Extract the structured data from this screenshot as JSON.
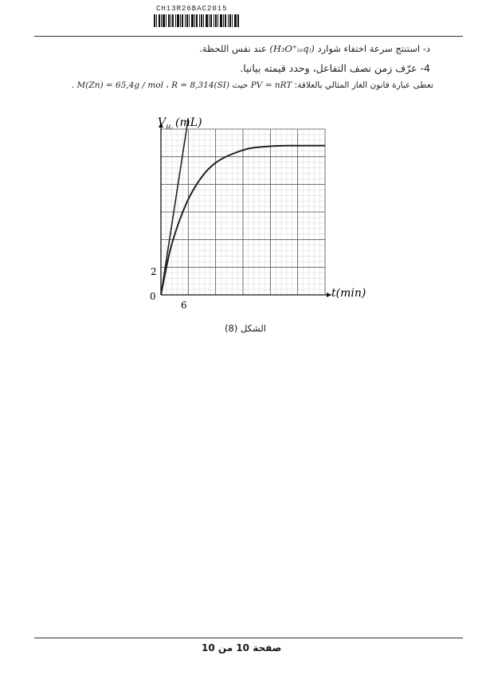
{
  "header": {
    "code": "CH13R26BAC2015"
  },
  "questions": {
    "q_d": {
      "prefix": "د-",
      "text_1": "استنتج سرعة اختفاء شوارد",
      "formula": "(H₃O⁺₍ₐq₎)",
      "text_2": "عند نفس اللحظة."
    },
    "q_4": {
      "prefix": "4-",
      "text": "عرّف زمن نصف التفاعل، وحدد قيمته بيانيا."
    },
    "gas_law": {
      "text": "تعطى عبارة قانون الغاز المثالي بالعلاقة:",
      "formula": "PV = nRT",
      "where": "حيث",
      "R": "R = 8,314(SI)",
      "sep": "،",
      "M": "M(Zn) = 65,4g / mol",
      "end": "."
    }
  },
  "figure": {
    "caption": "الشكل (8)",
    "y_label": "V",
    "y_subscript": "H₂",
    "y_unit": "(mL)",
    "x_label": "t(min)",
    "origin_label": "0",
    "y_tick_label": "2",
    "x_tick_label": "6"
  },
  "chart_data": {
    "type": "line",
    "xlabel": "t(min)",
    "ylabel": "V_H2 (mL)",
    "xlim": [
      0,
      36
    ],
    "ylim": [
      0,
      30
    ],
    "grid": true,
    "x_tick_labels": [
      "6"
    ],
    "y_tick_labels": [
      "2"
    ],
    "series": [
      {
        "type": "curve",
        "x": [
          0,
          2,
          4,
          6,
          8,
          10,
          12,
          14,
          16,
          18,
          20,
          24,
          28,
          32,
          36
        ],
        "y": [
          0,
          8,
          13.3,
          17.3,
          20.2,
          22.4,
          23.9,
          24.9,
          25.6,
          26.2,
          26.6,
          26.9,
          27.0,
          27.0,
          27.0
        ]
      },
      {
        "type": "tangent",
        "x": [
          0,
          6
        ],
        "y": [
          0,
          32
        ]
      }
    ]
  },
  "footer": {
    "page_label": "صفحة",
    "page_num": "10",
    "of_label": "من",
    "page_total": "10"
  }
}
